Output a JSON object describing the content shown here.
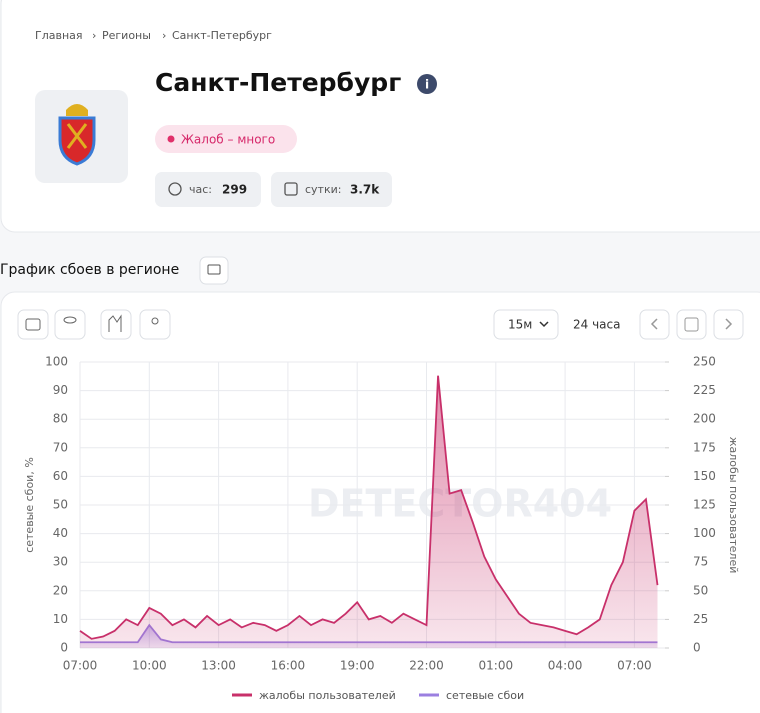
{
  "breadcrumbs": [
    "Главная",
    "Регионы",
    "Санкт-Петербург"
  ],
  "header": {
    "title": "Санкт-Петербург",
    "badge": "Жалоб – много",
    "stats": [
      {
        "label": "час:",
        "value": "299"
      },
      {
        "label": "сутки:",
        "value": "3.7k"
      }
    ]
  },
  "section_title": "График сбоев в регионе",
  "toolbar": {
    "interval": "15м",
    "period": "24 часа"
  },
  "chart_data": {
    "type": "line",
    "watermark": "DETECTOR404",
    "ylabel": "сетевые сбои, %",
    "y2label": "жалобы пользователей",
    "categories": [
      "07:00",
      null,
      null,
      null,
      null,
      null,
      "10:00",
      null,
      null,
      null,
      null,
      null,
      "13:00",
      null,
      null,
      null,
      null,
      null,
      "16:00",
      null,
      null,
      null,
      null,
      null,
      "19:00",
      null,
      null,
      null,
      null,
      null,
      "22:00",
      null,
      null,
      null,
      null,
      null,
      "01:00",
      null,
      null,
      null,
      null,
      null,
      "04:00",
      null,
      null,
      null,
      null,
      null,
      "07:00",
      null,
      null
    ],
    "ylim": [
      0,
      100
    ],
    "yticks": [
      0,
      10,
      20,
      30,
      40,
      50,
      60,
      70,
      80,
      90,
      100
    ],
    "y2lim": [
      0,
      250
    ],
    "y2ticks": [
      0,
      25,
      50,
      75,
      100,
      125,
      150,
      175,
      200,
      225,
      250
    ],
    "grid": true,
    "legend": "bottom",
    "series": [
      {
        "name": "жалобы пользователей",
        "color": "#c8306a",
        "axis": "y2",
        "values": [
          15,
          8,
          10,
          15,
          25,
          20,
          35,
          30,
          20,
          25,
          18,
          28,
          20,
          25,
          18,
          22,
          20,
          15,
          20,
          28,
          20,
          25,
          22,
          30,
          40,
          25,
          28,
          22,
          30,
          25,
          20,
          238,
          135,
          138,
          110,
          80,
          60,
          45,
          30,
          22,
          20,
          18,
          15,
          12,
          18,
          25,
          55,
          75,
          120,
          130,
          55
        ]
      },
      {
        "name": "сетевые сбои",
        "color": "#9b7fe0",
        "values": [
          2,
          2,
          2,
          2,
          2,
          2,
          8,
          3,
          2,
          2,
          2,
          2,
          2,
          2,
          2,
          2,
          2,
          2,
          2,
          2,
          2,
          2,
          2,
          2,
          2,
          2,
          2,
          2,
          2,
          2,
          2,
          2,
          2,
          2,
          2,
          2,
          2,
          2,
          2,
          2,
          2,
          2,
          2,
          2,
          2,
          2,
          2,
          2,
          2,
          2,
          2
        ]
      }
    ]
  }
}
